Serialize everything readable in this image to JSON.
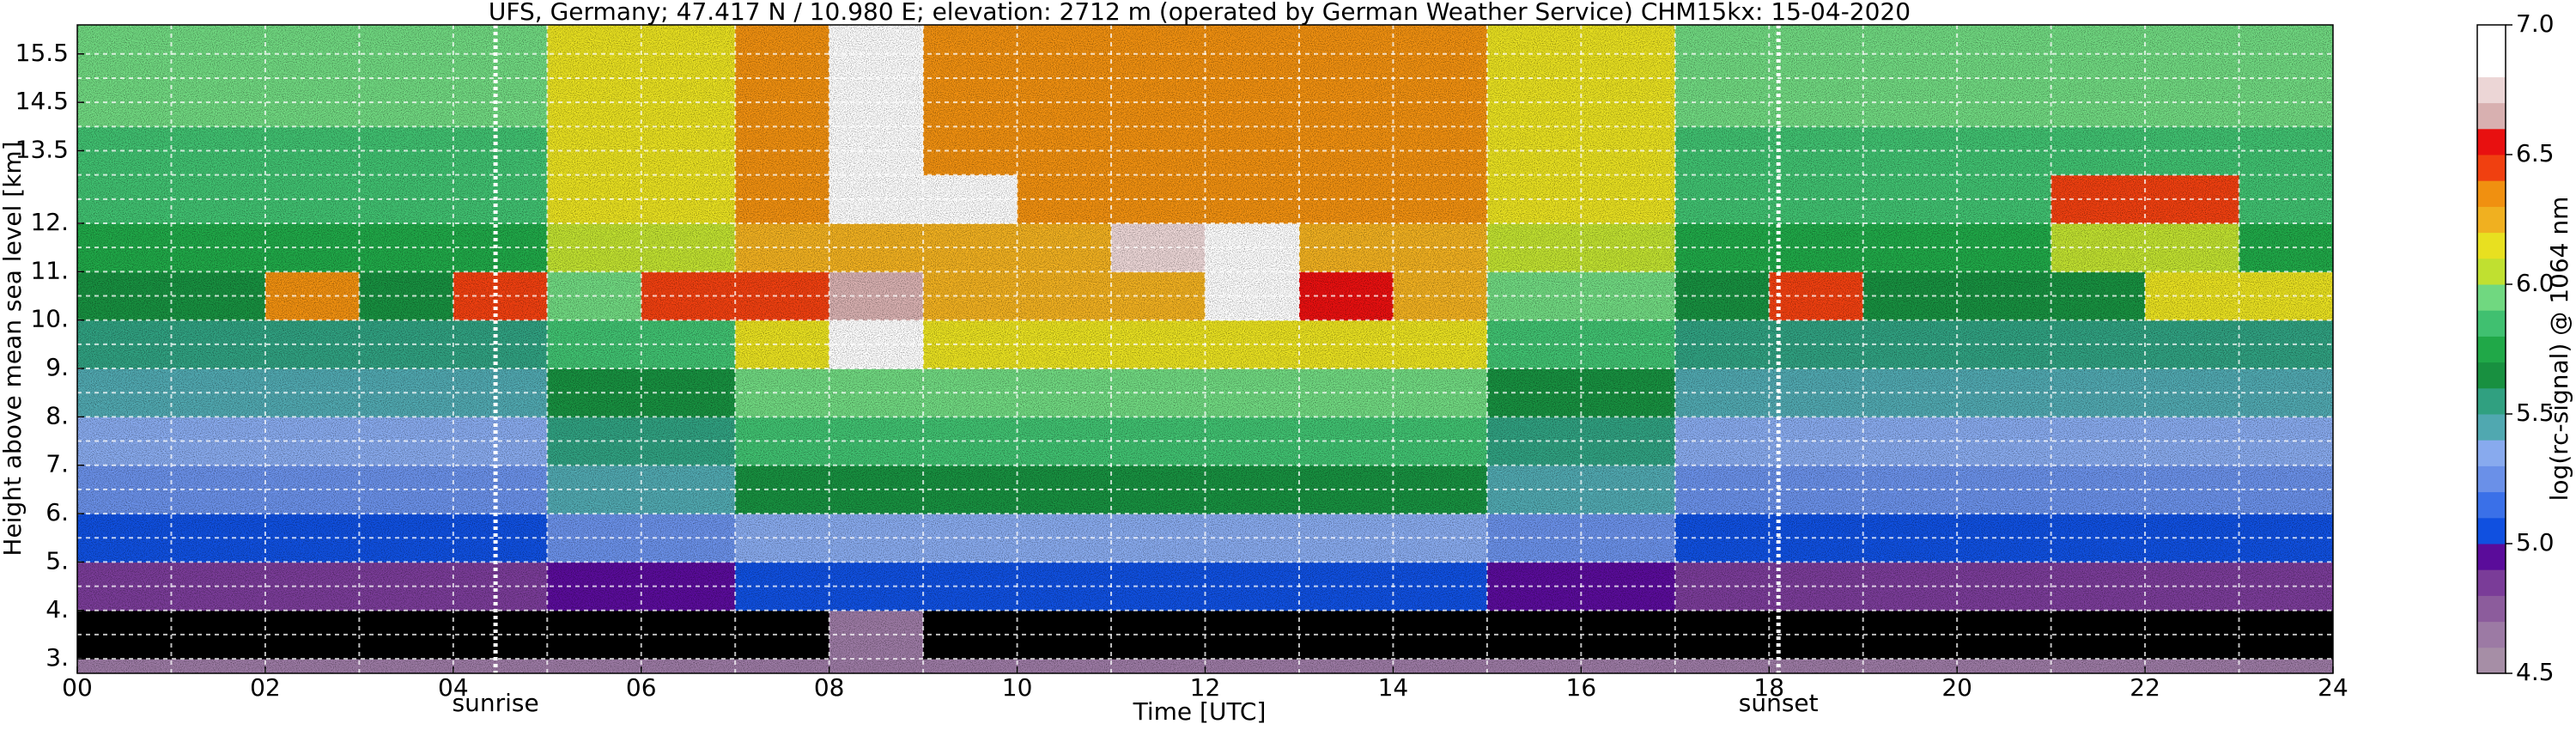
{
  "chart_data": {
    "type": "heatmap",
    "title": "UFS, Germany; 47.417 N / 10.980 E; elevation: 2712 m  (operated by German Weather Service)    CHM15kx: 15-04-2020",
    "xlabel": "Time [UTC]",
    "ylabel": "Height above mean sea level [km]",
    "xlim": [
      0,
      24
    ],
    "ylim": [
      2.7,
      16.1
    ],
    "xticks": [
      {
        "value": 0,
        "label": "00"
      },
      {
        "value": 2,
        "label": "02"
      },
      {
        "value": 4,
        "label": "04"
      },
      {
        "value": 6,
        "label": "06"
      },
      {
        "value": 8,
        "label": "08"
      },
      10,
      12,
      14,
      16,
      18,
      20,
      22,
      24
    ],
    "yticks": [
      {
        "value": 3,
        "label": "3."
      },
      {
        "value": 4,
        "label": "4."
      },
      {
        "value": 5,
        "label": "5."
      },
      {
        "value": 6,
        "label": "6."
      },
      {
        "value": 7,
        "label": "7."
      },
      {
        "value": 8,
        "label": "8."
      },
      {
        "value": 9,
        "label": "9."
      },
      {
        "value": 10,
        "label": "10."
      },
      {
        "value": 11,
        "label": "11."
      },
      {
        "value": 12,
        "label": "12."
      },
      13.5,
      14.5,
      15.5
    ],
    "xgrid": [
      1,
      2,
      3,
      4,
      5,
      6,
      7,
      8,
      9,
      10,
      11,
      12,
      13,
      14,
      15,
      16,
      17,
      18,
      19,
      20,
      21,
      22,
      23
    ],
    "ygrid": [
      3,
      3.5,
      4,
      4.5,
      5,
      5.5,
      6,
      6.5,
      7,
      7.5,
      8,
      8.5,
      9,
      9.5,
      10,
      10.5,
      11,
      11.5,
      12,
      12.5,
      13,
      13.5,
      14,
      14.5,
      15,
      15.5
    ],
    "grid": true,
    "xbins": [
      0,
      1,
      2,
      3,
      4,
      5,
      6,
      7,
      8,
      9,
      10,
      11,
      12,
      13,
      14,
      15,
      16,
      17,
      18,
      19,
      20,
      21,
      22,
      23,
      24
    ],
    "ybins": [
      2.7,
      3,
      4,
      5,
      6,
      7,
      8,
      9,
      10,
      11,
      12,
      13,
      14,
      16.1
    ],
    "z": [
      [
        4.6,
        4.6,
        4.6,
        4.6,
        4.6,
        4.6,
        4.6,
        4.6,
        4.6,
        4.6,
        4.6,
        4.6,
        4.6,
        4.6,
        4.6,
        4.6,
        4.6,
        4.6,
        4.6,
        4.6,
        4.6,
        4.6,
        4.6,
        4.6
      ],
      [
        4.3,
        4.3,
        4.3,
        4.3,
        4.3,
        4.3,
        4.3,
        4.3,
        4.6,
        4.3,
        4.3,
        4.3,
        4.3,
        4.3,
        4.3,
        4.3,
        4.3,
        4.3,
        4.3,
        4.3,
        4.3,
        4.3,
        4.3,
        4.3
      ],
      [
        4.8,
        4.8,
        4.8,
        4.8,
        4.8,
        4.9,
        4.9,
        5.0,
        5.0,
        5.0,
        5.0,
        5.0,
        5.0,
        5.0,
        5.0,
        4.9,
        4.9,
        4.8,
        4.8,
        4.8,
        4.8,
        4.8,
        4.8,
        4.8
      ],
      [
        5.0,
        5.0,
        5.0,
        5.0,
        5.0,
        5.2,
        5.2,
        5.3,
        5.3,
        5.3,
        5.3,
        5.3,
        5.3,
        5.3,
        5.3,
        5.2,
        5.2,
        5.0,
        5.0,
        5.0,
        5.0,
        5.0,
        5.0,
        5.0
      ],
      [
        5.2,
        5.2,
        5.2,
        5.2,
        5.2,
        5.4,
        5.4,
        5.6,
        5.6,
        5.6,
        5.6,
        5.6,
        5.6,
        5.6,
        5.6,
        5.4,
        5.4,
        5.2,
        5.2,
        5.2,
        5.2,
        5.2,
        5.2,
        5.2
      ],
      [
        5.3,
        5.3,
        5.3,
        5.3,
        5.3,
        5.5,
        5.5,
        5.8,
        5.8,
        5.8,
        5.8,
        5.8,
        5.8,
        5.8,
        5.8,
        5.5,
        5.5,
        5.3,
        5.3,
        5.3,
        5.3,
        5.3,
        5.3,
        5.3
      ],
      [
        5.4,
        5.4,
        5.4,
        5.4,
        5.4,
        5.6,
        5.6,
        5.9,
        5.9,
        5.9,
        5.9,
        5.9,
        5.9,
        5.9,
        5.9,
        5.6,
        5.6,
        5.4,
        5.4,
        5.4,
        5.4,
        5.4,
        5.4,
        5.4
      ],
      [
        5.5,
        5.5,
        5.5,
        5.5,
        5.5,
        5.8,
        5.8,
        6.1,
        6.8,
        6.1,
        6.1,
        6.1,
        6.1,
        6.1,
        6.1,
        5.8,
        5.8,
        5.5,
        5.5,
        5.5,
        5.5,
        5.5,
        5.5,
        5.5
      ],
      [
        5.6,
        5.6,
        6.3,
        5.6,
        6.4,
        5.9,
        6.4,
        6.4,
        6.6,
        6.2,
        6.2,
        6.2,
        6.8,
        6.5,
        6.2,
        5.9,
        5.9,
        5.6,
        6.4,
        5.6,
        5.6,
        5.6,
        6.1,
        6.1
      ],
      [
        5.7,
        5.7,
        5.7,
        5.7,
        5.7,
        6.0,
        6.0,
        6.2,
        6.2,
        6.2,
        6.2,
        6.7,
        6.8,
        6.2,
        6.2,
        6.0,
        6.0,
        5.7,
        5.7,
        5.7,
        5.7,
        6.0,
        6.0,
        5.7
      ],
      [
        5.8,
        5.8,
        5.8,
        5.8,
        5.8,
        6.1,
        6.1,
        6.3,
        6.9,
        6.8,
        6.3,
        6.3,
        6.3,
        6.3,
        6.3,
        6.1,
        6.1,
        5.8,
        5.8,
        5.8,
        5.8,
        6.4,
        6.4,
        5.8
      ],
      [
        5.8,
        5.8,
        5.8,
        5.8,
        5.8,
        6.1,
        6.1,
        6.3,
        6.9,
        6.3,
        6.3,
        6.3,
        6.3,
        6.3,
        6.3,
        6.1,
        6.1,
        5.8,
        5.8,
        5.8,
        5.8,
        5.8,
        5.8,
        5.8
      ],
      [
        5.9,
        5.9,
        5.9,
        5.9,
        5.9,
        6.1,
        6.1,
        6.3,
        6.9,
        6.3,
        6.3,
        6.3,
        6.3,
        6.3,
        6.3,
        6.1,
        6.1,
        5.9,
        5.9,
        5.9,
        5.9,
        5.9,
        5.9,
        5.9
      ]
    ],
    "annotations": [
      {
        "text": "sunrise",
        "x": 4.45
      },
      {
        "text": "sunset",
        "x": 18.1
      }
    ],
    "colorbar": {
      "label": "log(rc-signal) @ 1064 nm",
      "lim": [
        4.5,
        7
      ],
      "under_color": "#000000",
      "colors": [
        "#a68ea6",
        "#9c7aa4",
        "#8c5c9c",
        "#7a3c98",
        "#5a0c9a",
        "#1050e0",
        "#3a70e8",
        "#6a90e8",
        "#88aaee",
        "#50a8b0",
        "#30a080",
        "#189040",
        "#20a848",
        "#40c070",
        "#70d880",
        "#c0e030",
        "#e8e020",
        "#f0b020",
        "#f09010",
        "#f04010",
        "#e81010",
        "#d8b0b0",
        "#ecd6d6",
        "#ffffff",
        "#ffffff"
      ],
      "ticks": [
        4.5,
        {
          "value": 5,
          "label": "5.0"
        },
        5.5,
        {
          "value": 6,
          "label": "6.0"
        },
        6.5,
        {
          "value": 7,
          "label": "7.0"
        }
      ]
    }
  }
}
